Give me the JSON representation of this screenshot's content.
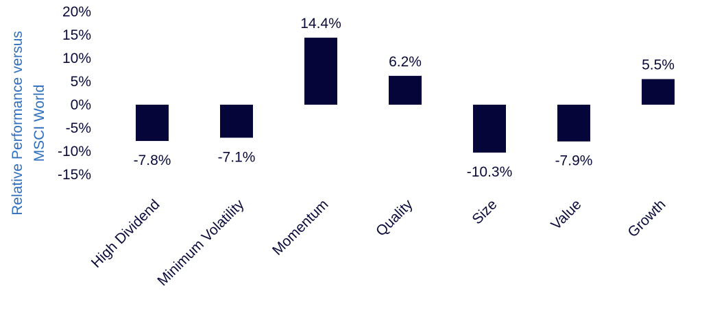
{
  "chart_data": {
    "type": "bar",
    "ylabel_lines": [
      "Relative Performance versus",
      "MSCI World"
    ],
    "categories": [
      "High Dividend",
      "Minimum Volatility",
      "Momentum",
      "Quality",
      "Size",
      "Value",
      "Growth"
    ],
    "values": [
      -7.8,
      -7.1,
      14.4,
      6.2,
      -10.3,
      -7.9,
      5.5
    ],
    "data_labels": [
      "-7.8%",
      "-7.1%",
      "14.4%",
      "6.2%",
      "-10.3%",
      "-7.9%",
      "5.5%"
    ],
    "yticks": [
      20,
      15,
      10,
      5,
      0,
      -5,
      -10,
      -15
    ],
    "ytick_labels": [
      "20%",
      "15%",
      "10%",
      "5%",
      "0%",
      "-5%",
      "-10%",
      "-15%"
    ],
    "ylim": [
      -15,
      20
    ],
    "grid": false,
    "legend": "none",
    "colors": {
      "bar": "#05053a",
      "axis_label": "#2f6fbf",
      "text": "#0a0a3a"
    }
  }
}
